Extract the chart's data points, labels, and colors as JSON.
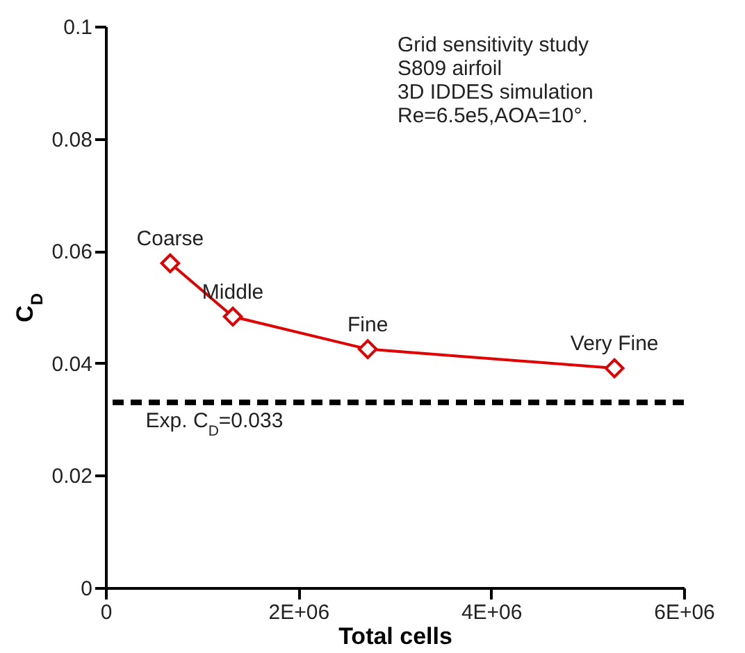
{
  "chart_data": {
    "type": "line",
    "xlabel": "Total cells",
    "ylabel": "C$_{D}$",
    "x": [
      670000,
      1320000,
      2720000,
      5280000
    ],
    "series": [
      {
        "color": "#e00000",
        "values": [
          0.0578,
          0.0483,
          0.0425,
          0.0391
        ]
      }
    ],
    "marker": "diamond",
    "line_style": "solid",
    "grid": false,
    "legend": false,
    "xlim": [
      0,
      6000000
    ],
    "xticks": [
      0,
      {
        "value": 2000000,
        "label": "2E+06"
      },
      {
        "value": 4000000,
        "label": "4E+06"
      },
      {
        "value": 6000000,
        "label": "6E+06"
      }
    ],
    "ylim": [
      0,
      0.1
    ],
    "yticks": [
      0,
      0.02,
      0.04,
      0.06,
      0.08,
      0.1
    ],
    "ref_lines": [
      {
        "axis": "y",
        "value": 0.033,
        "label": "Exp. C$_{D}$=0.033",
        "color": "#000000",
        "line_style": "dashed"
      }
    ],
    "annotations": [
      "Grid sensitivity study",
      "S809 airfoil",
      "3D IDDES simulation",
      "Re=6.5e5,AOA=10°.",
      {
        "text": "Coarse",
        "x": 670000,
        "y": 0.0578
      },
      {
        "text": "Middle",
        "x": 1320000,
        "y": 0.0483
      },
      {
        "text": "Fine",
        "x": 2720000,
        "y": 0.0425
      },
      {
        "text": "Very Fine",
        "x": 5280000,
        "y": 0.0391
      }
    ]
  }
}
